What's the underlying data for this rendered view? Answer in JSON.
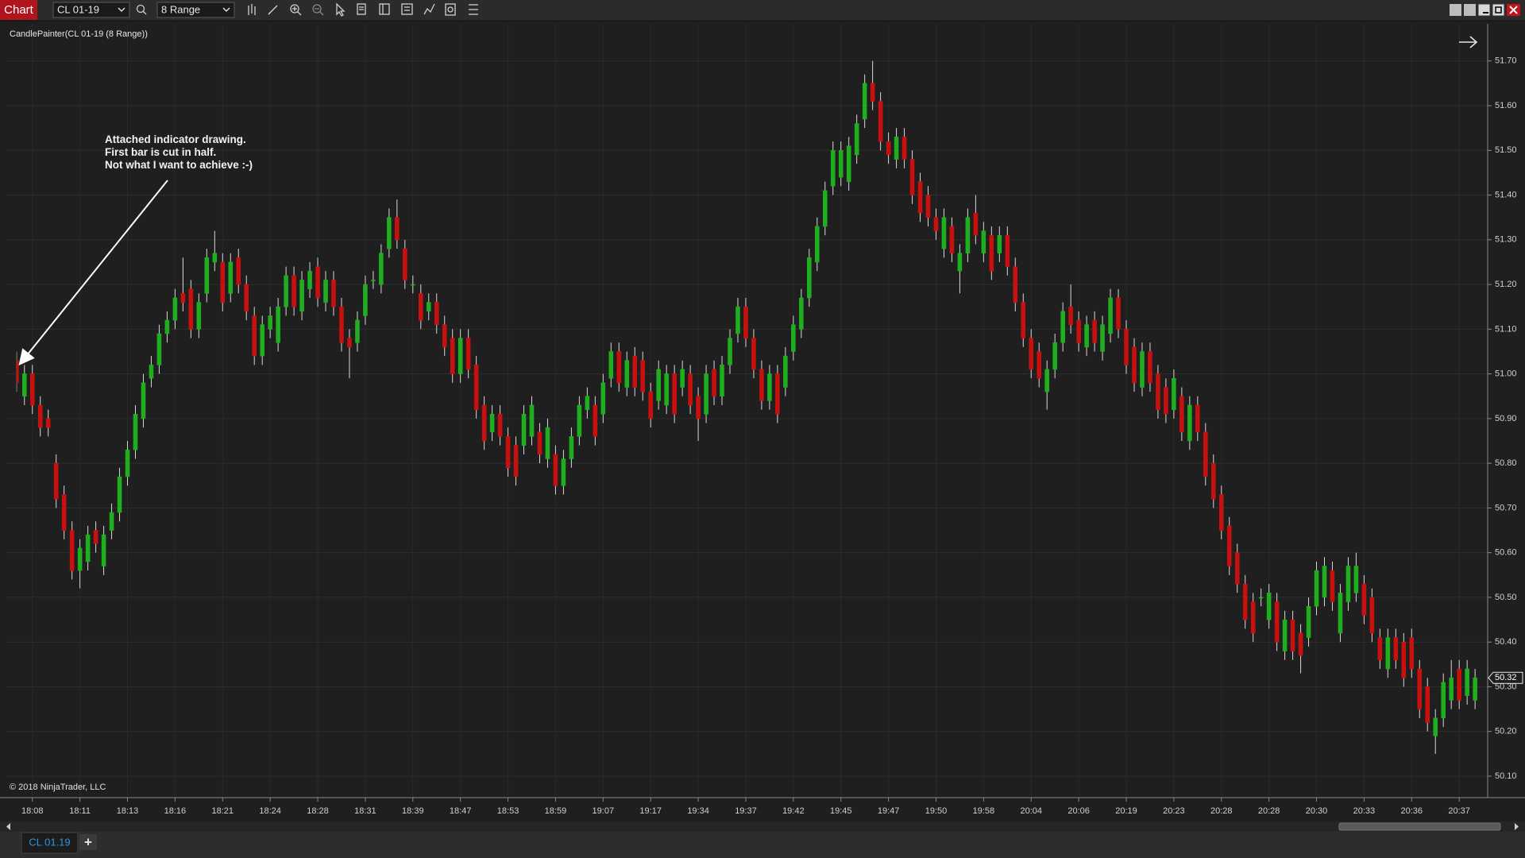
{
  "toolbar": {
    "title": "Chart",
    "instrument": "CL 01-19",
    "period": "8 Range"
  },
  "tabs": {
    "active": "CL 01.19",
    "add": "+"
  },
  "chart_data": {
    "type": "candlestick",
    "indicator_label": "CandlePainter(CL 01-19 (8 Range))",
    "copyright": "© 2018 NinjaTrader, LLC",
    "annotation": [
      "Attached indicator drawing.",
      "First bar is cut in half.",
      "Not what I want to achieve :-)"
    ],
    "categories": [
      null,
      null,
      "18:08",
      null,
      null,
      null,
      null,
      null,
      "18:11",
      null,
      null,
      null,
      null,
      null,
      "18:13",
      null,
      null,
      null,
      null,
      null,
      "18:16",
      null,
      null,
      null,
      null,
      null,
      "18:21",
      null,
      null,
      null,
      null,
      null,
      "18:24",
      null,
      null,
      null,
      null,
      null,
      "18:28",
      null,
      null,
      null,
      null,
      null,
      "18:31",
      null,
      null,
      null,
      null,
      null,
      "18:39",
      null,
      null,
      null,
      null,
      null,
      "18:47",
      null,
      null,
      null,
      null,
      null,
      "18:53",
      null,
      null,
      null,
      null,
      null,
      "18:59",
      null,
      null,
      null,
      null,
      null,
      "19:07",
      null,
      null,
      null,
      null,
      null,
      "19:17",
      null,
      null,
      null,
      null,
      null,
      "19:34",
      null,
      null,
      null,
      null,
      null,
      "19:37",
      null,
      null,
      null,
      null,
      null,
      "19:42",
      null,
      null,
      null,
      null,
      null,
      "19:45",
      null,
      null,
      null,
      null,
      null,
      "19:47",
      null,
      null,
      null,
      null,
      null,
      "19:50",
      null,
      null,
      null,
      null,
      null,
      "19:58",
      null,
      null,
      null,
      null,
      null,
      "20:04",
      null,
      null,
      null,
      null,
      null,
      "20:06",
      null,
      null,
      null,
      null,
      null,
      "20:19",
      null,
      null,
      null,
      null,
      null,
      "20:23",
      null,
      null,
      null,
      null,
      null,
      "20:28",
      null,
      null,
      null,
      null,
      null,
      "20:28",
      null,
      null,
      null,
      null,
      null,
      "20:30",
      null,
      null,
      null,
      null,
      null,
      "20:33",
      null,
      null,
      null,
      null,
      null,
      "20:36",
      null,
      null,
      null,
      null,
      null,
      "20:37",
      null,
      null
    ],
    "ohlc": [
      [
        51.03,
        51.05,
        50.96,
        50.98
      ],
      [
        50.95,
        51.02,
        50.93,
        51.0
      ],
      [
        51.0,
        51.02,
        50.91,
        50.93
      ],
      [
        50.93,
        50.95,
        50.86,
        50.88
      ],
      [
        50.9,
        50.92,
        50.86,
        50.88
      ],
      [
        50.8,
        50.82,
        50.7,
        50.72
      ],
      [
        50.73,
        50.75,
        50.63,
        50.65
      ],
      [
        50.65,
        50.67,
        50.54,
        50.56
      ],
      [
        50.56,
        50.63,
        50.52,
        50.61
      ],
      [
        50.58,
        50.66,
        50.56,
        50.64
      ],
      [
        50.65,
        50.67,
        50.6,
        50.62
      ],
      [
        50.57,
        50.66,
        50.55,
        50.64
      ],
      [
        50.65,
        50.71,
        50.63,
        50.69
      ],
      [
        50.69,
        50.79,
        50.67,
        50.77
      ],
      [
        50.77,
        50.85,
        50.75,
        50.83
      ],
      [
        50.83,
        50.93,
        50.81,
        50.91
      ],
      [
        50.9,
        51.0,
        50.88,
        50.98
      ],
      [
        50.99,
        51.04,
        50.97,
        51.02
      ],
      [
        51.02,
        51.11,
        51.0,
        51.09
      ],
      [
        51.09,
        51.14,
        51.07,
        51.12
      ],
      [
        51.12,
        51.19,
        51.1,
        51.17
      ],
      [
        51.18,
        51.26,
        51.14,
        51.16
      ],
      [
        51.19,
        51.21,
        51.08,
        51.1
      ],
      [
        51.1,
        51.18,
        51.08,
        51.16
      ],
      [
        51.18,
        51.28,
        51.16,
        51.26
      ],
      [
        51.25,
        51.32,
        51.23,
        51.27
      ],
      [
        51.25,
        51.27,
        51.14,
        51.16
      ],
      [
        51.18,
        51.27,
        51.16,
        51.25
      ],
      [
        51.26,
        51.28,
        51.18,
        51.2
      ],
      [
        51.2,
        51.22,
        51.12,
        51.14
      ],
      [
        51.13,
        51.15,
        51.02,
        51.04
      ],
      [
        51.04,
        51.13,
        51.02,
        51.11
      ],
      [
        51.1,
        51.15,
        51.08,
        51.13
      ],
      [
        51.07,
        51.17,
        51.05,
        51.15
      ],
      [
        51.15,
        51.24,
        51.13,
        51.22
      ],
      [
        51.22,
        51.24,
        51.13,
        51.15
      ],
      [
        51.14,
        51.23,
        51.12,
        51.21
      ],
      [
        51.19,
        51.25,
        51.17,
        51.23
      ],
      [
        51.24,
        51.26,
        51.15,
        51.17
      ],
      [
        51.16,
        51.23,
        51.14,
        51.21
      ],
      [
        51.21,
        51.23,
        51.13,
        51.15
      ],
      [
        51.15,
        51.17,
        51.05,
        51.07
      ],
      [
        51.08,
        51.1,
        50.99,
        51.06
      ],
      [
        51.07,
        51.14,
        51.05,
        51.12
      ],
      [
        51.13,
        51.22,
        51.11,
        51.2
      ],
      [
        51.21,
        51.23,
        51.19,
        51.21
      ],
      [
        51.2,
        51.29,
        51.18,
        51.27
      ],
      [
        51.28,
        51.37,
        51.26,
        51.35
      ],
      [
        51.35,
        51.39,
        51.28,
        51.3
      ],
      [
        51.28,
        51.3,
        51.19,
        51.21
      ],
      [
        51.2,
        51.22,
        51.18,
        51.2
      ],
      [
        51.18,
        51.2,
        51.1,
        51.12
      ],
      [
        51.14,
        51.18,
        51.12,
        51.16
      ],
      [
        51.16,
        51.18,
        51.09,
        51.11
      ],
      [
        51.11,
        51.13,
        51.04,
        51.06
      ],
      [
        51.08,
        51.1,
        50.98,
        51.0
      ],
      [
        51.0,
        51.1,
        50.98,
        51.08
      ],
      [
        51.08,
        51.1,
        50.99,
        51.01
      ],
      [
        51.02,
        51.04,
        50.9,
        50.92
      ],
      [
        50.93,
        50.95,
        50.83,
        50.85
      ],
      [
        50.87,
        50.93,
        50.85,
        50.91
      ],
      [
        50.91,
        50.93,
        50.84,
        50.86
      ],
      [
        50.86,
        50.88,
        50.77,
        50.79
      ],
      [
        50.84,
        50.86,
        50.75,
        50.77
      ],
      [
        50.84,
        50.93,
        50.82,
        50.91
      ],
      [
        50.86,
        50.95,
        50.84,
        50.93
      ],
      [
        50.87,
        50.89,
        50.8,
        50.82
      ],
      [
        50.81,
        50.9,
        50.79,
        50.88
      ],
      [
        50.82,
        50.84,
        50.73,
        50.75
      ],
      [
        50.75,
        50.83,
        50.73,
        50.81
      ],
      [
        50.81,
        50.88,
        50.79,
        50.86
      ],
      [
        50.86,
        50.95,
        50.84,
        50.93
      ],
      [
        50.92,
        50.97,
        50.9,
        50.95
      ],
      [
        50.93,
        50.95,
        50.84,
        50.86
      ],
      [
        50.91,
        51.0,
        50.89,
        50.98
      ],
      [
        50.99,
        51.07,
        50.97,
        51.05
      ],
      [
        51.05,
        51.07,
        50.96,
        50.98
      ],
      [
        50.97,
        51.05,
        50.95,
        51.03
      ],
      [
        51.04,
        51.06,
        50.95,
        50.97
      ],
      [
        51.03,
        51.05,
        50.94,
        50.96
      ],
      [
        50.96,
        50.98,
        50.88,
        50.9
      ],
      [
        50.94,
        51.03,
        50.92,
        51.01
      ],
      [
        50.93,
        51.02,
        50.91,
        51.0
      ],
      [
        51.0,
        51.02,
        50.89,
        50.91
      ],
      [
        50.97,
        51.03,
        50.95,
        51.01
      ],
      [
        51.0,
        51.02,
        50.91,
        50.93
      ],
      [
        50.95,
        50.97,
        50.85,
        50.9
      ],
      [
        50.91,
        51.02,
        50.89,
        51.0
      ],
      [
        51.01,
        51.03,
        50.93,
        50.95
      ],
      [
        50.95,
        51.04,
        50.93,
        51.02
      ],
      [
        51.02,
        51.1,
        51.0,
        51.08
      ],
      [
        51.09,
        51.17,
        51.07,
        51.15
      ],
      [
        51.15,
        51.17,
        51.06,
        51.08
      ],
      [
        51.08,
        51.1,
        50.99,
        51.01
      ],
      [
        51.01,
        51.03,
        50.92,
        50.94
      ],
      [
        50.94,
        51.02,
        50.92,
        51.0
      ],
      [
        51.0,
        51.02,
        50.89,
        50.91
      ],
      [
        50.97,
        51.06,
        50.95,
        51.04
      ],
      [
        51.05,
        51.13,
        51.03,
        51.11
      ],
      [
        51.1,
        51.19,
        51.08,
        51.17
      ],
      [
        51.17,
        51.28,
        51.15,
        51.26
      ],
      [
        51.25,
        51.35,
        51.23,
        51.33
      ],
      [
        51.33,
        51.43,
        51.31,
        51.41
      ],
      [
        51.42,
        51.52,
        51.4,
        51.5
      ],
      [
        51.44,
        51.52,
        51.42,
        51.5
      ],
      [
        51.43,
        51.53,
        51.41,
        51.51
      ],
      [
        51.49,
        51.58,
        51.47,
        51.56
      ],
      [
        51.57,
        51.67,
        51.55,
        51.65
      ],
      [
        51.65,
        51.7,
        51.59,
        51.61
      ],
      [
        51.61,
        51.63,
        51.5,
        51.52
      ],
      [
        51.52,
        51.54,
        51.47,
        51.49
      ],
      [
        51.48,
        51.55,
        51.46,
        51.53
      ],
      [
        51.53,
        51.55,
        51.46,
        51.48
      ],
      [
        51.48,
        51.5,
        51.38,
        51.4
      ],
      [
        51.43,
        51.45,
        51.34,
        51.36
      ],
      [
        51.4,
        51.42,
        51.33,
        51.35
      ],
      [
        51.35,
        51.37,
        51.3,
        51.32
      ],
      [
        51.28,
        51.37,
        51.26,
        51.35
      ],
      [
        51.33,
        51.35,
        51.25,
        51.27
      ],
      [
        51.23,
        51.29,
        51.18,
        51.27
      ],
      [
        51.27,
        51.37,
        51.25,
        51.35
      ],
      [
        51.36,
        51.4,
        51.29,
        51.31
      ],
      [
        51.27,
        51.34,
        51.25,
        51.32
      ],
      [
        51.31,
        51.33,
        51.21,
        51.23
      ],
      [
        51.27,
        51.33,
        51.25,
        51.31
      ],
      [
        51.31,
        51.33,
        51.22,
        51.24
      ],
      [
        51.24,
        51.26,
        51.14,
        51.16
      ],
      [
        51.16,
        51.18,
        51.06,
        51.08
      ],
      [
        51.08,
        51.1,
        50.99,
        51.01
      ],
      [
        51.05,
        51.07,
        50.97,
        50.99
      ],
      [
        50.96,
        51.03,
        50.92,
        51.01
      ],
      [
        51.01,
        51.09,
        50.99,
        51.07
      ],
      [
        51.07,
        51.16,
        51.05,
        51.14
      ],
      [
        51.15,
        51.2,
        51.09,
        51.11
      ],
      [
        51.12,
        51.14,
        51.05,
        51.07
      ],
      [
        51.06,
        51.13,
        51.04,
        51.11
      ],
      [
        51.12,
        51.14,
        51.05,
        51.07
      ],
      [
        51.05,
        51.13,
        51.03,
        51.11
      ],
      [
        51.09,
        51.19,
        51.07,
        51.17
      ],
      [
        51.17,
        51.19,
        51.08,
        51.1
      ],
      [
        51.1,
        51.12,
        51.0,
        51.02
      ],
      [
        51.06,
        51.08,
        50.96,
        50.98
      ],
      [
        50.97,
        51.07,
        50.95,
        51.05
      ],
      [
        51.05,
        51.07,
        50.96,
        50.98
      ],
      [
        51.0,
        51.02,
        50.9,
        50.92
      ],
      [
        50.97,
        50.99,
        50.89,
        50.91
      ],
      [
        50.92,
        51.01,
        50.9,
        50.99
      ],
      [
        50.95,
        50.97,
        50.85,
        50.87
      ],
      [
        50.85,
        50.95,
        50.83,
        50.93
      ],
      [
        50.93,
        50.95,
        50.85,
        50.87
      ],
      [
        50.87,
        50.89,
        50.75,
        50.77
      ],
      [
        50.8,
        50.82,
        50.7,
        50.72
      ],
      [
        50.73,
        50.75,
        50.63,
        50.65
      ],
      [
        50.66,
        50.68,
        50.55,
        50.57
      ],
      [
        50.6,
        50.62,
        50.51,
        50.53
      ],
      [
        50.53,
        50.55,
        50.43,
        50.45
      ],
      [
        50.49,
        50.51,
        50.4,
        50.42
      ],
      [
        50.5,
        50.52,
        50.48,
        50.5
      ],
      [
        50.45,
        50.53,
        50.43,
        50.51
      ],
      [
        50.49,
        50.51,
        50.38,
        50.4
      ],
      [
        50.38,
        50.47,
        50.36,
        50.45
      ],
      [
        50.45,
        50.47,
        50.36,
        50.38
      ],
      [
        50.42,
        50.44,
        50.33,
        50.37
      ],
      [
        50.41,
        50.5,
        50.39,
        50.48
      ],
      [
        50.48,
        50.58,
        50.46,
        50.56
      ],
      [
        50.5,
        50.59,
        50.48,
        50.57
      ],
      [
        50.56,
        50.58,
        50.47,
        50.49
      ],
      [
        50.42,
        50.53,
        50.4,
        50.51
      ],
      [
        50.49,
        50.59,
        50.47,
        50.57
      ],
      [
        50.51,
        50.6,
        50.49,
        50.57
      ],
      [
        50.53,
        50.55,
        50.44,
        50.46
      ],
      [
        50.5,
        50.52,
        50.4,
        50.42
      ],
      [
        50.41,
        50.43,
        50.34,
        50.36
      ],
      [
        50.34,
        50.43,
        50.32,
        50.41
      ],
      [
        50.41,
        50.43,
        50.34,
        50.36
      ],
      [
        50.4,
        50.42,
        50.3,
        50.32
      ],
      [
        50.41,
        50.43,
        50.32,
        50.34
      ],
      [
        50.34,
        50.36,
        50.23,
        50.25
      ],
      [
        50.3,
        50.32,
        50.2,
        50.22
      ],
      [
        50.19,
        50.25,
        50.15,
        50.23
      ],
      [
        50.23,
        50.33,
        50.21,
        50.31
      ],
      [
        50.27,
        50.36,
        50.25,
        50.32
      ],
      [
        50.34,
        50.36,
        50.25,
        50.27
      ],
      [
        50.28,
        50.36,
        50.26,
        50.34
      ],
      [
        50.27,
        50.34,
        50.25,
        50.32
      ]
    ],
    "ylim": [
      50.052,
      51.776
    ],
    "yticks": [
      {
        "value": 50.1,
        "label": "50.10"
      },
      {
        "value": 50.2,
        "label": "50.20"
      },
      {
        "value": 50.3,
        "label": "50.30"
      },
      {
        "value": 50.4,
        "label": "50.40"
      },
      {
        "value": 50.5,
        "label": "50.50"
      },
      {
        "value": 50.6,
        "label": "50.60"
      },
      {
        "value": 50.7,
        "label": "50.70"
      },
      {
        "value": 50.8,
        "label": "50.80"
      },
      {
        "value": 50.9,
        "label": "50.90"
      },
      {
        "value": 51.0,
        "label": "51.00"
      },
      {
        "value": 51.1,
        "label": "51.10"
      },
      {
        "value": 51.2,
        "label": "51.20"
      },
      {
        "value": 51.3,
        "label": "51.30"
      },
      {
        "value": 51.4,
        "label": "51.40"
      },
      {
        "value": 51.5,
        "label": "51.50"
      },
      {
        "value": 51.6,
        "label": "51.60"
      },
      {
        "value": 51.7,
        "label": "51.70"
      }
    ],
    "grid": true,
    "up_color": "#1fae1f",
    "down_color": "#c8100f",
    "wick_color": "#d8d8d8",
    "last_price": 50.32
  }
}
